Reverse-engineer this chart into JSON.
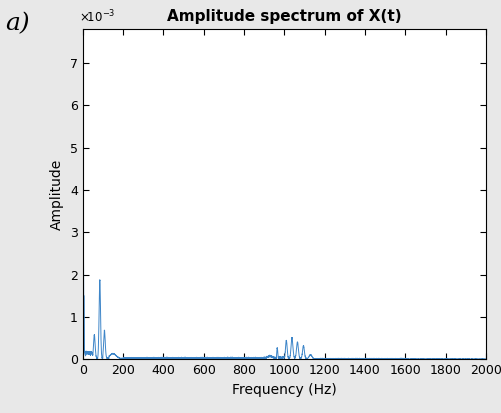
{
  "title": "Amplitude spectrum of X(t)",
  "xlabel": "Frequency (Hz)",
  "ylabel": "Amplitude",
  "xlim": [
    0,
    2000
  ],
  "ylim": [
    0,
    0.0078
  ],
  "yticks": [
    0,
    0.001,
    0.002,
    0.003,
    0.004,
    0.005,
    0.006,
    0.007
  ],
  "ytick_labels": [
    "0",
    "1",
    "2",
    "3",
    "4",
    "5",
    "6",
    "7"
  ],
  "xticks": [
    0,
    200,
    400,
    600,
    800,
    1000,
    1200,
    1400,
    1600,
    1800,
    2000
  ],
  "panel_label": "a)",
  "line_color": "#3d85c8",
  "background_color": "#e8e8e8",
  "axes_background": "#ffffff",
  "title_fontsize": 11,
  "label_fontsize": 10,
  "tick_fontsize": 9,
  "panel_label_fontsize": 18
}
